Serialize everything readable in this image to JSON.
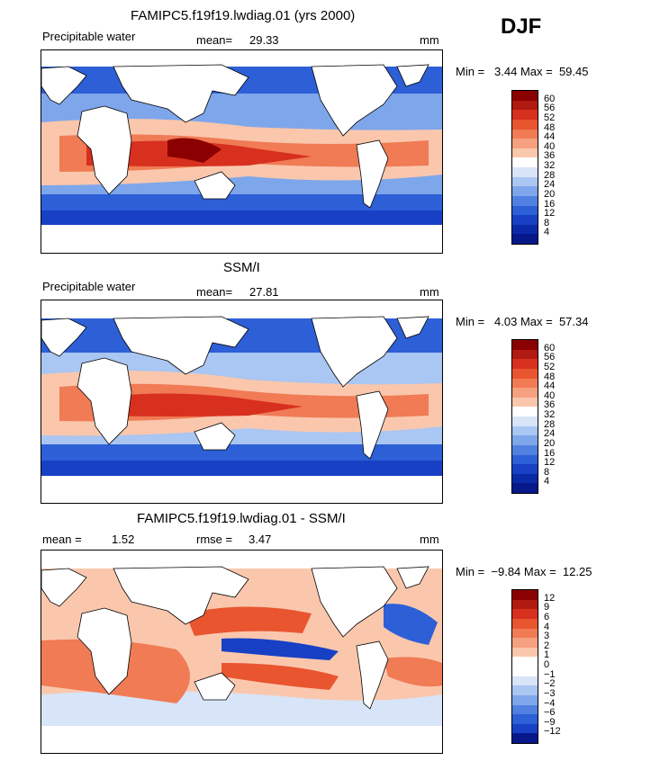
{
  "season": "DJF",
  "panels": [
    {
      "id": "model",
      "title": "FAMIPC5.f19f19.lwdiag.01 (yrs 2000)",
      "left_label": "Precipitable water",
      "stat_label": "mean=",
      "stat_value": "29.33",
      "stat2_label": "",
      "stat2_value": "",
      "units": "mm",
      "min_label": "Min =",
      "min_value": "3.44",
      "max_label": "Max =",
      "max_value": "59.45",
      "colorbar_ticks": [
        "60",
        "56",
        "52",
        "48",
        "44",
        "40",
        "36",
        "32",
        "28",
        "24",
        "20",
        "16",
        "12",
        "8",
        "4"
      ]
    },
    {
      "id": "obs",
      "title": "SSM/I",
      "left_label": "Precipitable water",
      "stat_label": "mean=",
      "stat_value": "27.81",
      "stat2_label": "",
      "stat2_value": "",
      "units": "mm",
      "min_label": "Min =",
      "min_value": "4.03",
      "max_label": "Max =",
      "max_value": "57.34",
      "colorbar_ticks": [
        "60",
        "56",
        "52",
        "48",
        "44",
        "40",
        "36",
        "32",
        "28",
        "24",
        "20",
        "16",
        "12",
        "8",
        "4"
      ]
    },
    {
      "id": "diff",
      "title": "FAMIPC5.f19f19.lwdiag.01 - SSM/I",
      "left_label": "mean =",
      "stat_label": "",
      "stat_value": "1.52",
      "stat2_label": "rmse =",
      "stat2_value": "3.47",
      "units": "mm",
      "min_label": "Min =",
      "min_value": "−9.84",
      "max_label": "Max =",
      "max_value": "12.25",
      "colorbar_ticks": [
        "12",
        "9",
        "6",
        "4",
        "3",
        "2",
        "1",
        "0",
        "−1",
        "−2",
        "−3",
        "−4",
        "−6",
        "−9",
        "−12"
      ]
    }
  ],
  "colors": {
    "abs_scale": [
      "#8b0000",
      "#b01a10",
      "#d7301f",
      "#e8552f",
      "#f07b55",
      "#f5a07f",
      "#fac7ad",
      "#ffffff",
      "#d8e4f8",
      "#aac6f2",
      "#7ea6eb",
      "#5080e0",
      "#2d5fd6",
      "#1740c4",
      "#0a2aa8",
      "#06188a"
    ],
    "diff_scale": [
      "#8b0000",
      "#b01a10",
      "#d7301f",
      "#e8552f",
      "#f07b55",
      "#f5a07f",
      "#fac7ad",
      "#ffffff",
      "#ffffff",
      "#d8e4f8",
      "#aac6f2",
      "#7ea6eb",
      "#5080e0",
      "#2d5fd6",
      "#1740c4",
      "#06188a"
    ],
    "land": "#ffffff",
    "coast": "#000000"
  }
}
